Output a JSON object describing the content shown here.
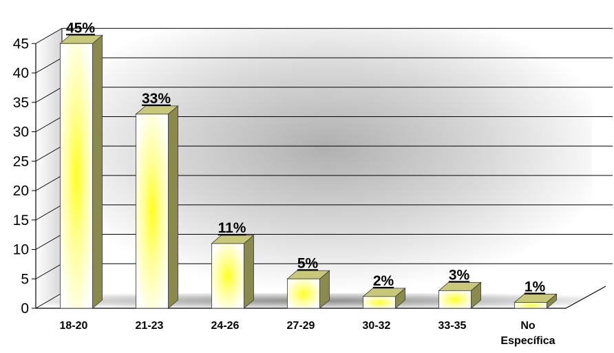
{
  "chart_data": {
    "type": "bar",
    "title": "",
    "xlabel": "",
    "ylabel": "",
    "categories": [
      "18-20",
      "21-23",
      "24-26",
      "27-29",
      "30-32",
      "33-35",
      "No Específica"
    ],
    "values": [
      45,
      33,
      11,
      5,
      2,
      3,
      1
    ],
    "data_labels": [
      "45%",
      "33%",
      "11%",
      "5%",
      "2%",
      "3%",
      "1%"
    ],
    "y_ticks": [
      "0",
      "5",
      "10",
      "15",
      "20",
      "25",
      "30",
      "35",
      "40",
      "45"
    ],
    "ylim": [
      0,
      45
    ],
    "grid": true,
    "legend": "none",
    "style": "3d-column",
    "colors": {
      "bar_front_edge": "#ffffff",
      "bar_center": "#ffff33",
      "bar_side": "#8a8a4a",
      "bar_top": "#c8c87a",
      "wall_shade": "#b8b8b8",
      "grid": "#000000"
    }
  }
}
